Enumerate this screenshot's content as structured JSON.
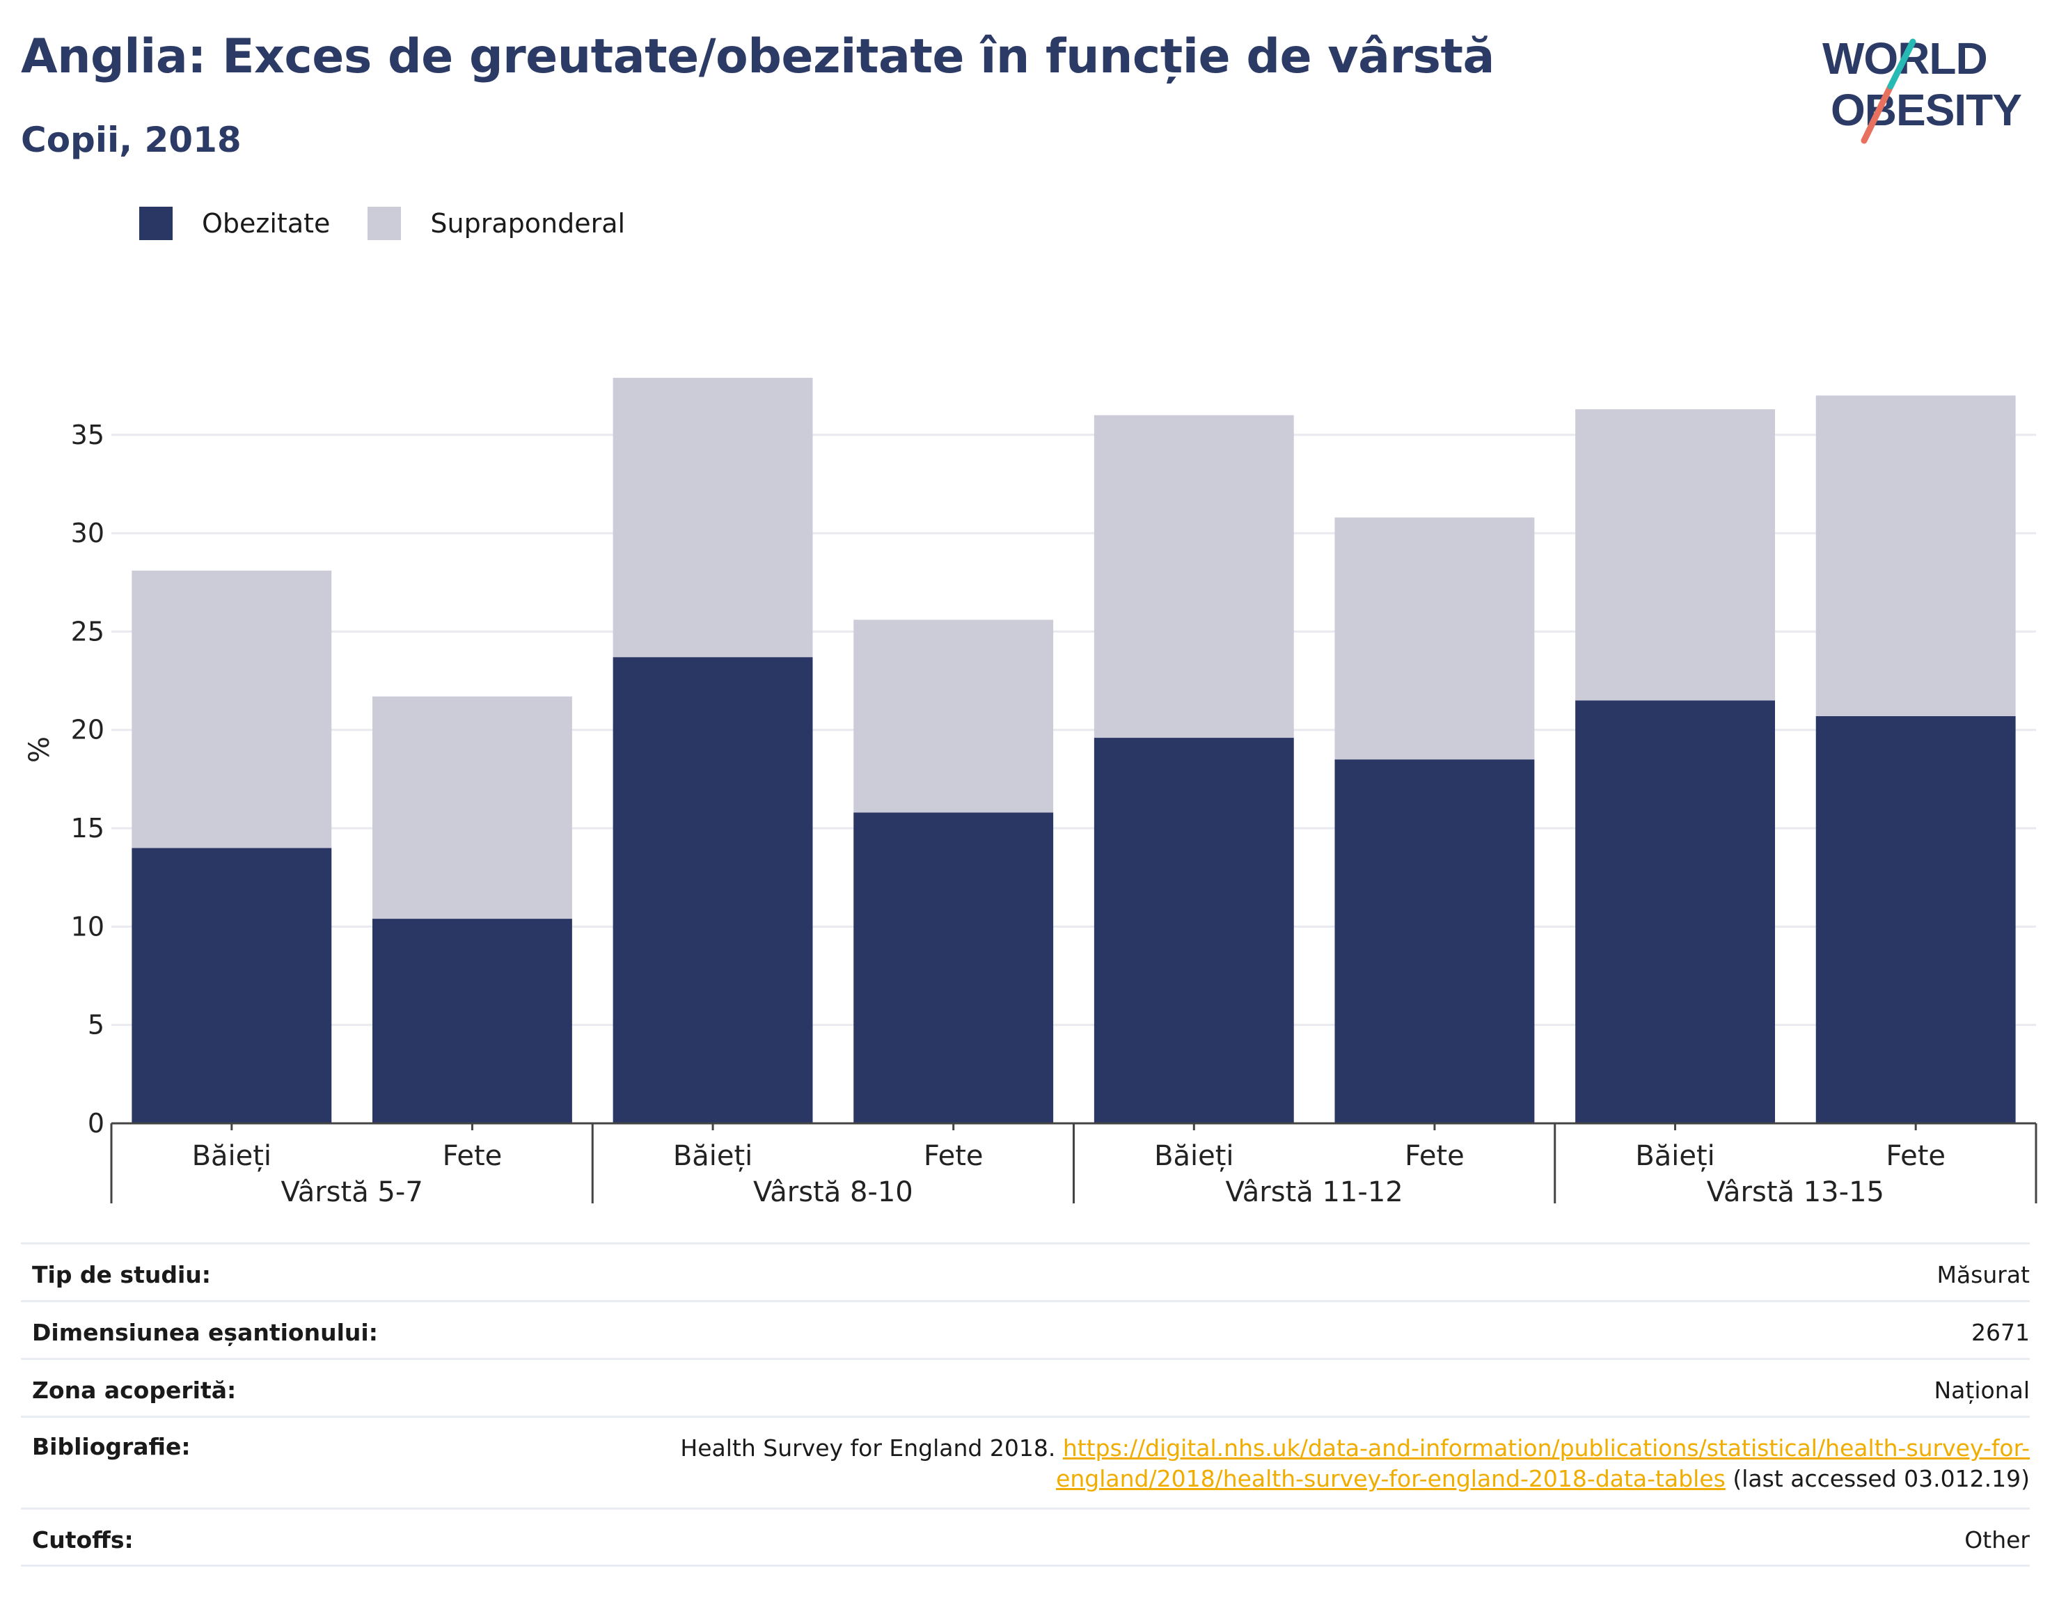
{
  "title": "Anglia: Exces de greutate/obezitate în funcție de vârstă",
  "subtitle": "Copii, 2018",
  "logo": {
    "line1": "WORLD",
    "line2": "OBESITY"
  },
  "colors": {
    "obesity": "#2a3663",
    "overweight": "#cbccd8",
    "title": "#2c3a66",
    "link": "#f0ad00",
    "grid": "#e9e9ef"
  },
  "chart_data": {
    "type": "bar",
    "stacked": true,
    "ylabel": "%",
    "ylim": [
      0,
      38
    ],
    "yticks": [
      0,
      5,
      10,
      15,
      20,
      25,
      30,
      35
    ],
    "grid": true,
    "legend_position": "top-left",
    "groups": [
      "Vârstă 5-7",
      "Vârstă 8-10",
      "Vârstă 11-12",
      "Vârstă 13-15"
    ],
    "categories": [
      "Băieți",
      "Fete",
      "Băieți",
      "Fete",
      "Băieți",
      "Fete",
      "Băieți",
      "Fete"
    ],
    "series": [
      {
        "name": "Obezitate",
        "values": [
          14.0,
          10.4,
          23.7,
          15.8,
          19.6,
          18.5,
          21.5,
          20.7
        ]
      },
      {
        "name": "Supraponderal",
        "values": [
          14.1,
          11.3,
          14.2,
          9.8,
          16.4,
          12.3,
          14.8,
          16.3
        ]
      }
    ]
  },
  "meta": {
    "rows": [
      {
        "label": "Tip de studiu:",
        "value": "Măsurat"
      },
      {
        "label": "Dimensiunea eșantionului:",
        "value": "2671"
      },
      {
        "label": "Zona acoperită:",
        "value": "Național"
      },
      {
        "label": "Bibliografie:",
        "value": "Health Survey for England 2018.",
        "link_line1": "https://digital.nhs.uk/data-and-information/publications/statistical/health-survey-for-",
        "link_line2": "england/2018/health-survey-for-england-2018-data-tables",
        "suffix": "(last accessed 03.012.19)"
      },
      {
        "label": "Cutoffs:",
        "value": "Other"
      }
    ]
  }
}
